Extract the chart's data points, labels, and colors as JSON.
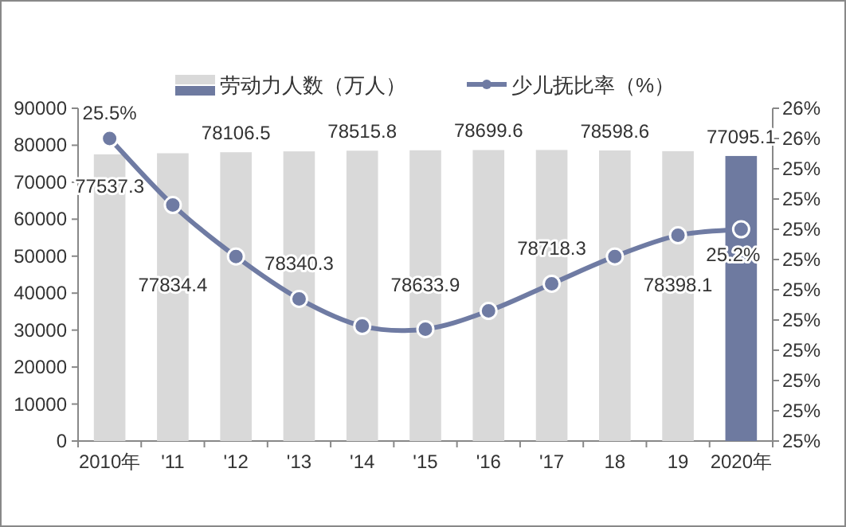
{
  "chart_data": {
    "type": "bar",
    "categories": [
      "2010年",
      "'11",
      "'12",
      "'13",
      "'14",
      "'15",
      "'16",
      "'17",
      "18",
      "19",
      "2020年"
    ],
    "series": [
      {
        "name": "劳动力人数（万人）",
        "color": "#d9d9d9",
        "colors": [
          "#d9d9d9",
          "#d9d9d9",
          "#d9d9d9",
          "#d9d9d9",
          "#d9d9d9",
          "#d9d9d9",
          "#d9d9d9",
          "#d9d9d9",
          "#d9d9d9",
          "#d9d9d9",
          "#6e7aa0"
        ],
        "values": [
          77537.3,
          77834.4,
          78106.5,
          78340.3,
          78515.8,
          78633.9,
          78699.6,
          78718.3,
          78598.6,
          78398.1,
          77095.1
        ],
        "value_labels": [
          "77537.3",
          "77834.4",
          "78106.5",
          "78340.3",
          "78515.8",
          "78633.9",
          "78699.6",
          "78718.3",
          "78598.6",
          "78398.1",
          "77095.1"
        ]
      },
      {
        "name": "少儿抚比率（%）",
        "type": "line",
        "axis": "y2",
        "color": "#6f7ba3",
        "marker": "circle",
        "values": [
          25.5,
          25.28,
          25.11,
          24.97,
          24.88,
          24.87,
          24.93,
          25.02,
          25.11,
          25.18,
          25.2
        ],
        "value_labels": [
          "25.5%",
          null,
          null,
          null,
          null,
          null,
          null,
          null,
          null,
          null,
          "25.2%"
        ]
      }
    ],
    "ylim": [
      0,
      90000
    ],
    "yticks": [
      0,
      10000,
      20000,
      30000,
      40000,
      50000,
      60000,
      70000,
      80000,
      90000
    ],
    "y2lim": [
      24.5,
      25.6
    ],
    "y2ticks": [
      {
        "value": 24.5,
        "label": "25%"
      },
      {
        "value": 24.6,
        "label": "25%"
      },
      {
        "value": 24.7,
        "label": "25%"
      },
      {
        "value": 24.8,
        "label": "25%"
      },
      {
        "value": 24.9,
        "label": "25%"
      },
      {
        "value": 25.0,
        "label": "25%"
      },
      {
        "value": 25.1,
        "label": "25%"
      },
      {
        "value": 25.2,
        "label": "25%"
      },
      {
        "value": 25.3,
        "label": "25%"
      },
      {
        "value": 25.4,
        "label": "25%"
      },
      {
        "value": 25.5,
        "label": "26%"
      },
      {
        "value": 25.6,
        "label": "26%"
      }
    ],
    "legend": "top",
    "grid": false
  }
}
